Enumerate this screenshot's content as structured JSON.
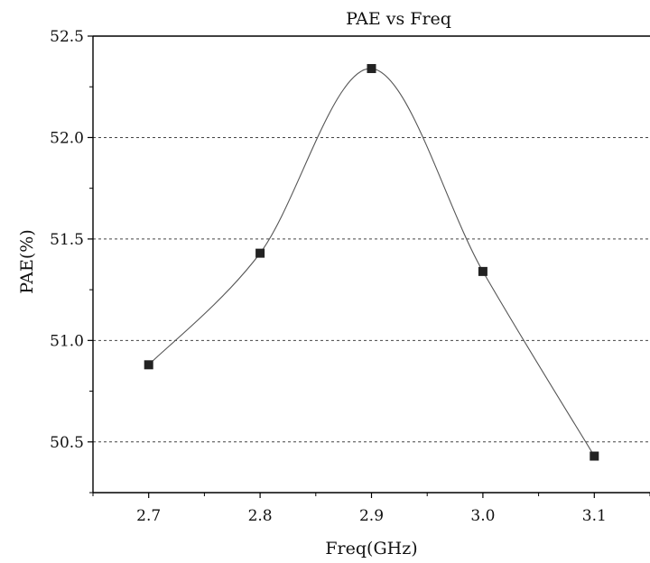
{
  "chart_data": {
    "type": "line",
    "title": "PAE vs Freq",
    "xlabel": "Freq(GHz)",
    "ylabel": "PAE(%)",
    "x": [
      2.7,
      2.8,
      2.9,
      3.0,
      3.1
    ],
    "series": [
      {
        "values": [
          50.88,
          51.43,
          52.34,
          51.34,
          50.43
        ]
      }
    ],
    "xlim": [
      2.65,
      3.15
    ],
    "ylim": [
      50.25,
      52.5
    ],
    "x_ticks": [
      "2.7",
      "2.8",
      "2.9",
      "3.0",
      "3.1"
    ],
    "y_ticks": [
      "50.5",
      "51.0",
      "51.5",
      "52.0",
      "52.5"
    ],
    "y_tick_values": [
      50.5,
      51.0,
      51.5,
      52.0,
      52.5
    ],
    "grid": "horizontal dashed",
    "line_style": "smooth",
    "marker": "square",
    "line_color": "#555555",
    "marker_color": "#222222"
  }
}
